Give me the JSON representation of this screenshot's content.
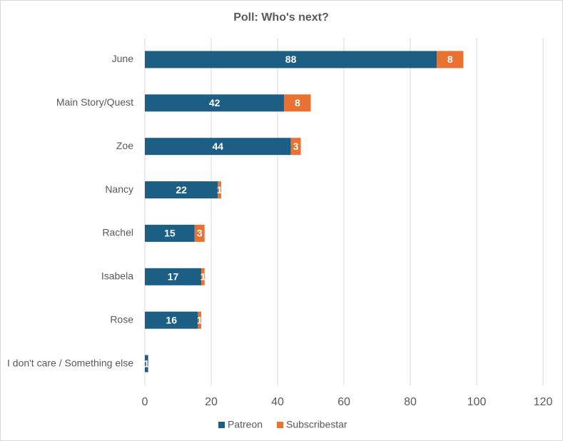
{
  "chart_data": {
    "type": "bar",
    "orientation": "horizontal",
    "stacked": true,
    "title": "Poll: Who's next?",
    "categories": [
      "June",
      "Main Story/Quest",
      "Zoe",
      "Nancy",
      "Rachel",
      "Isabela",
      "Rose",
      "I don't care / Something else"
    ],
    "series": [
      {
        "name": "Patreon",
        "color": "#1d5e85",
        "values": [
          88,
          42,
          44,
          22,
          15,
          17,
          16,
          1
        ]
      },
      {
        "name": "Subscribestar",
        "color": "#e97132",
        "values": [
          8,
          8,
          3,
          1,
          3,
          1,
          1,
          null
        ]
      }
    ],
    "xlim": [
      0,
      120
    ],
    "xticks": [
      0,
      20,
      40,
      60,
      80,
      100,
      120
    ],
    "grid": true,
    "legend": "bottom"
  }
}
